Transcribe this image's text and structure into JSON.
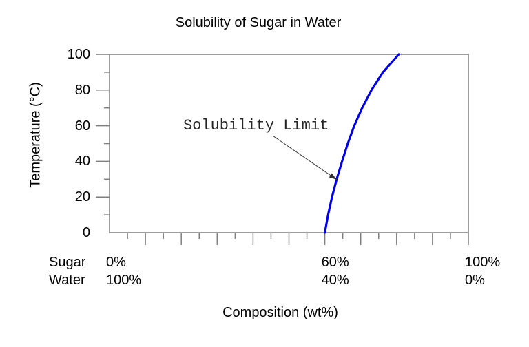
{
  "chart_data": {
    "type": "line",
    "title": "Solubility of Sugar in Water",
    "xlabel": "Composition (wt%)",
    "ylabel": "Temperature (°C)",
    "xlim": [
      0,
      100
    ],
    "ylim": [
      0,
      100
    ],
    "grid": false,
    "legend": "none",
    "x_major_ticks": [
      10,
      20,
      30,
      40,
      50,
      60,
      70,
      80,
      90,
      100
    ],
    "x_minor_ticks": [
      5,
      15,
      25,
      35,
      45,
      55,
      65,
      75,
      85,
      95
    ],
    "y_major_ticks": [
      20,
      40,
      60,
      80,
      100
    ],
    "y_minor_ticks": [
      10,
      30,
      50,
      70,
      90
    ],
    "y_tick_labels": [
      {
        "value": 0,
        "label": "0"
      },
      {
        "value": 20,
        "label": "20"
      },
      {
        "value": 40,
        "label": "40"
      },
      {
        "value": 60,
        "label": "60"
      },
      {
        "value": 80,
        "label": "80"
      },
      {
        "value": 100,
        "label": "100"
      }
    ],
    "series": [
      {
        "name": "Solubility Limit",
        "points": [
          [
            60.0,
            0
          ],
          [
            60.9,
            10
          ],
          [
            62.0,
            20
          ],
          [
            63.3,
            30
          ],
          [
            64.8,
            40
          ],
          [
            66.4,
            50
          ],
          [
            68.2,
            60
          ],
          [
            70.4,
            70
          ],
          [
            73.0,
            80
          ],
          [
            76.2,
            90
          ],
          [
            80.6,
            100
          ]
        ]
      }
    ],
    "annotation": {
      "text": "Solubility Limit",
      "arrow_start": [
        45.5,
        54.4
      ],
      "arrow_end": [
        63.3,
        29.8
      ]
    },
    "composition_rows": [
      {
        "label": "Sugar",
        "values": [
          {
            "x": 0,
            "label": "0%"
          },
          {
            "x": 60,
            "label": "60%"
          },
          {
            "x": 100,
            "label": "100%"
          }
        ]
      },
      {
        "label": "Water",
        "values": [
          {
            "x": 0,
            "label": "100%"
          },
          {
            "x": 60,
            "label": "40%"
          },
          {
            "x": 100,
            "label": "0%"
          }
        ]
      }
    ],
    "colors": {
      "curve": "#0000ee",
      "frame": "#7f7f7f",
      "tick": "#7f7f7f",
      "text": "#000000",
      "annotation_text": "#262626",
      "arrow": "#333333"
    }
  }
}
